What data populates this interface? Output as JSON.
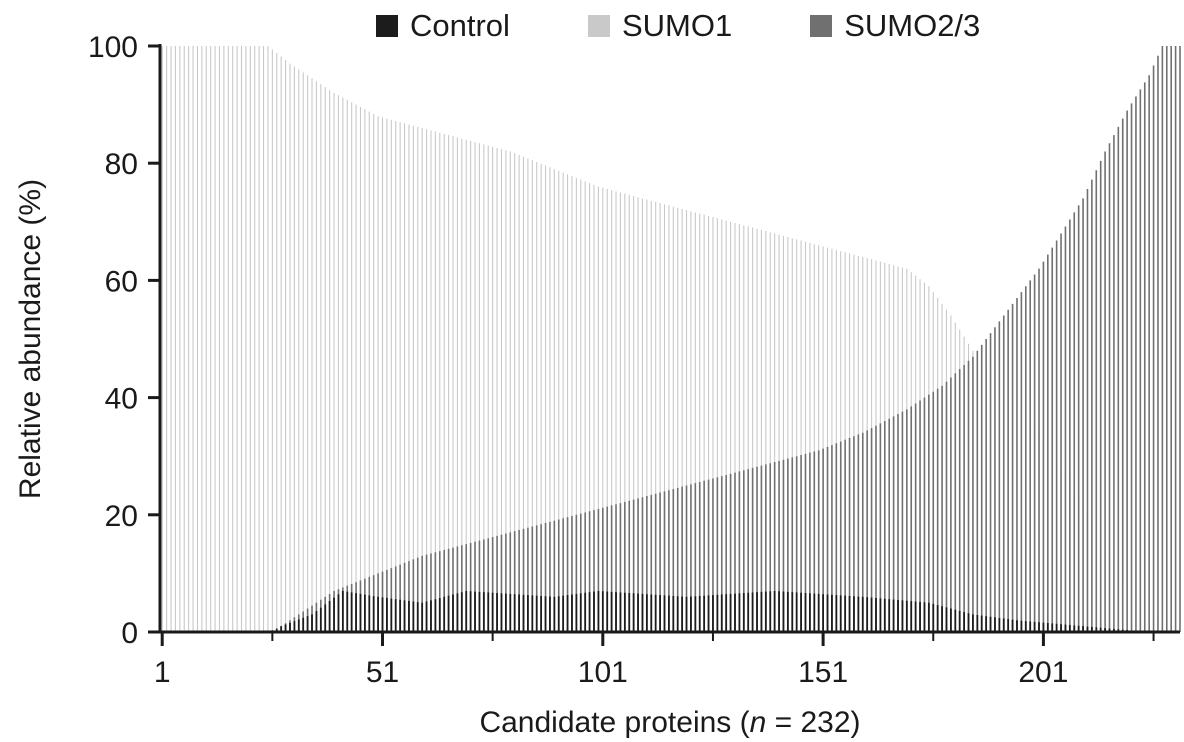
{
  "chart_data": {
    "type": "bar",
    "xlabel_prefix": "Candidate proteins (",
    "xlabel_n": "n",
    "xlabel_suffix": " = 232)",
    "ylabel": "Relative abundance (%)",
    "ylim": [
      0,
      100
    ],
    "xlim": [
      1,
      232
    ],
    "yticks": [
      "0",
      "20",
      "40",
      "60",
      "80",
      "100"
    ],
    "xticks": [
      "1",
      "51",
      "101",
      "151",
      "201"
    ],
    "legend_placement": "top",
    "n": 232,
    "series": [
      {
        "name": "Control",
        "color": "#1c1c1c",
        "anchors": [
          [
            1,
            0
          ],
          [
            26,
            0
          ],
          [
            28,
            1
          ],
          [
            35,
            3
          ],
          [
            42,
            7
          ],
          [
            50,
            6
          ],
          [
            60,
            5
          ],
          [
            70,
            7
          ],
          [
            90,
            6
          ],
          [
            100,
            7
          ],
          [
            120,
            6
          ],
          [
            140,
            7
          ],
          [
            160,
            6
          ],
          [
            175,
            5
          ],
          [
            185,
            3
          ],
          [
            195,
            2
          ],
          [
            210,
            1
          ],
          [
            225,
            0
          ],
          [
            232,
            0
          ]
        ]
      },
      {
        "name": "SUMO1",
        "color": "#c9c9c9",
        "anchors": [
          [
            1,
            100
          ],
          [
            25,
            100
          ],
          [
            30,
            97
          ],
          [
            40,
            92
          ],
          [
            50,
            88
          ],
          [
            60,
            86
          ],
          [
            70,
            84
          ],
          [
            80,
            82
          ],
          [
            90,
            79
          ],
          [
            100,
            76
          ],
          [
            110,
            74
          ],
          [
            120,
            72
          ],
          [
            130,
            70
          ],
          [
            140,
            68
          ],
          [
            150,
            66
          ],
          [
            160,
            64
          ],
          [
            170,
            62
          ],
          [
            175,
            59
          ],
          [
            180,
            54
          ],
          [
            185,
            48
          ],
          [
            190,
            43
          ],
          [
            195,
            38
          ],
          [
            200,
            34
          ],
          [
            205,
            28
          ],
          [
            210,
            22
          ],
          [
            215,
            14
          ],
          [
            220,
            8
          ],
          [
            225,
            3
          ],
          [
            232,
            0
          ]
        ]
      },
      {
        "name": "SUMO2/3",
        "color": "#707070",
        "anchors": [
          [
            1,
            0
          ],
          [
            25,
            0
          ],
          [
            28,
            1
          ],
          [
            32,
            3
          ],
          [
            40,
            7
          ],
          [
            50,
            10
          ],
          [
            60,
            13
          ],
          [
            70,
            15
          ],
          [
            80,
            17
          ],
          [
            90,
            19
          ],
          [
            100,
            21
          ],
          [
            110,
            23
          ],
          [
            120,
            25
          ],
          [
            130,
            27
          ],
          [
            140,
            29
          ],
          [
            150,
            31
          ],
          [
            160,
            34
          ],
          [
            170,
            38
          ],
          [
            178,
            42
          ],
          [
            185,
            47
          ],
          [
            190,
            52
          ],
          [
            195,
            57
          ],
          [
            200,
            62
          ],
          [
            205,
            68
          ],
          [
            210,
            74
          ],
          [
            215,
            82
          ],
          [
            220,
            89
          ],
          [
            225,
            95
          ],
          [
            228,
            100
          ],
          [
            232,
            100
          ]
        ]
      }
    ]
  }
}
